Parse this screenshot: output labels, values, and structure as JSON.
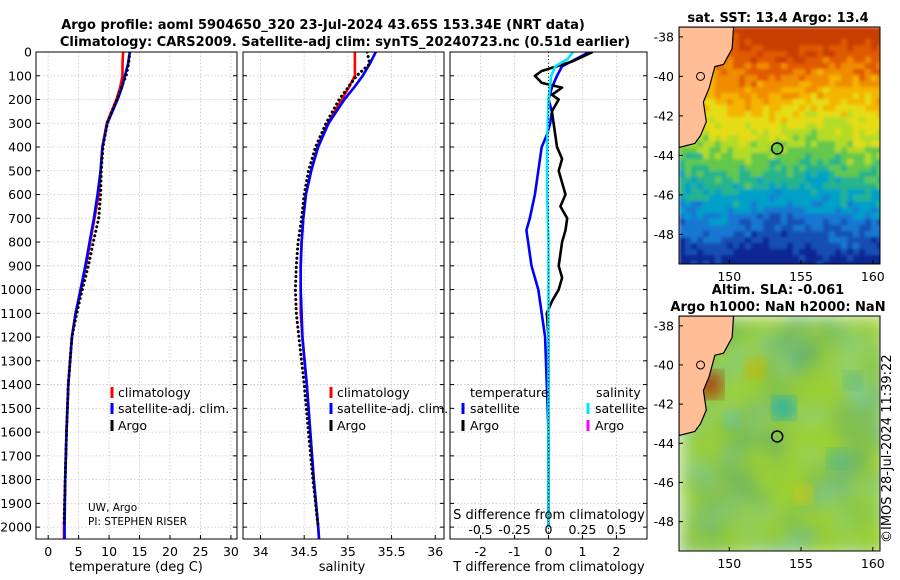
{
  "header": {
    "title_line1": "Argo profile: aoml 5904650_320 23-Jul-2024 43.65S 153.34E (NRT data)",
    "title_line2": "Climatology: CARS2009. Satellite-adj clim: synTS_20240723.nc (0.51d earlier)"
  },
  "footer_credit": "UW, Argo",
  "footer_pi": "PI: STEPHEN RISER",
  "timestamp": "©IMOS 28-Jul-2024 11:39:22",
  "colors": {
    "climatology": "#ff0000",
    "satellite": "#0000ff",
    "argo": "#000000",
    "sat_salinity": "#00e5ff",
    "argo_salinity": "#ff00ff",
    "land": "#ffbe96"
  },
  "chart_data": [
    {
      "type": "line",
      "name": "temperature",
      "xlabel": "temperature (deg C)",
      "ylabel": "",
      "xlim": [
        -2,
        31
      ],
      "ylim": [
        2050,
        0
      ],
      "xticks": [
        0,
        5,
        10,
        15,
        20,
        25,
        30
      ],
      "yticks": [
        0,
        100,
        200,
        300,
        400,
        500,
        600,
        700,
        800,
        900,
        1000,
        1100,
        1200,
        1300,
        1400,
        1500,
        1600,
        1700,
        1800,
        1900,
        2000
      ],
      "grid": true,
      "legend": [
        "climatology",
        "satellite-adj. clim.",
        "Argo"
      ],
      "series": [
        {
          "name": "climatology",
          "color": "#ff0000",
          "style": "solid",
          "depth": [
            0,
            50,
            100,
            150,
            200,
            300,
            400,
            500,
            600,
            700,
            800,
            900,
            1000,
            1100,
            1200,
            1400,
            1600,
            1800,
            2000,
            2050
          ],
          "values": [
            12.3,
            12.2,
            12.2,
            11.8,
            11.2,
            9.6,
            8.9,
            8.6,
            8.3,
            7.6,
            6.9,
            6.2,
            5.4,
            4.5,
            3.9,
            3.3,
            3.0,
            2.8,
            2.6,
            2.6
          ]
        },
        {
          "name": "satellite-adj. clim.",
          "color": "#0000ff",
          "style": "solid",
          "depth": [
            0,
            50,
            100,
            150,
            200,
            300,
            400,
            500,
            600,
            700,
            800,
            900,
            1000,
            1100,
            1200,
            1400,
            1600,
            1800,
            2000,
            2050
          ],
          "values": [
            13.4,
            13.1,
            12.6,
            12.1,
            11.4,
            9.7,
            8.9,
            8.6,
            8.1,
            7.5,
            6.8,
            6.1,
            5.3,
            4.5,
            3.9,
            3.3,
            3.0,
            2.8,
            2.7,
            2.7
          ]
        },
        {
          "name": "Argo",
          "color": "#000000",
          "style": "dotted",
          "depth": [
            0,
            50,
            100,
            150,
            200,
            250,
            300,
            400,
            500,
            600,
            700,
            800,
            900,
            1000,
            1100,
            1200,
            1400,
            1600,
            1800,
            2000
          ],
          "values": [
            13.4,
            13.2,
            12.8,
            12.0,
            11.3,
            10.5,
            9.7,
            9.0,
            8.7,
            8.6,
            8.3,
            7.4,
            6.6,
            5.6,
            4.7,
            3.9,
            3.3,
            3.0,
            2.8,
            2.6
          ]
        }
      ]
    },
    {
      "type": "line",
      "name": "salinity",
      "xlabel": "salinity",
      "ylabel": "",
      "xlim": [
        33.8,
        36.1
      ],
      "ylim": [
        2050,
        0
      ],
      "xticks": [
        34,
        34.5,
        35,
        35.5,
        36
      ],
      "grid": true,
      "legend": [
        "climatology",
        "satellite-adj. clim.",
        "Argo"
      ],
      "series": [
        {
          "name": "climatology",
          "color": "#ff0000",
          "style": "solid",
          "depth": [
            0,
            50,
            100,
            150,
            200,
            300,
            400,
            500,
            600,
            700,
            800,
            900,
            1000,
            1100,
            1200,
            1400,
            1600,
            1800,
            2000,
            2050
          ],
          "values": [
            35.08,
            35.08,
            35.08,
            35.01,
            34.93,
            34.77,
            34.65,
            34.58,
            34.52,
            34.49,
            34.47,
            34.46,
            34.46,
            34.46,
            34.48,
            34.53,
            34.57,
            34.61,
            34.66,
            34.67
          ]
        },
        {
          "name": "satellite-adj. clim.",
          "color": "#0000ff",
          "style": "solid",
          "depth": [
            0,
            50,
            100,
            150,
            200,
            300,
            400,
            500,
            600,
            700,
            800,
            900,
            1000,
            1100,
            1200,
            1400,
            1600,
            1800,
            2000,
            2050
          ],
          "values": [
            35.32,
            35.25,
            35.17,
            35.07,
            34.96,
            34.78,
            34.66,
            34.58,
            34.52,
            34.49,
            34.47,
            34.46,
            34.46,
            34.47,
            34.48,
            34.53,
            34.57,
            34.61,
            34.66,
            34.67
          ]
        },
        {
          "name": "Argo",
          "color": "#000000",
          "style": "dotted",
          "depth": [
            0,
            50,
            100,
            150,
            200,
            300,
            400,
            500,
            600,
            700,
            800,
            900,
            1000,
            1100,
            1200,
            1400,
            1600,
            1800,
            2000
          ],
          "values": [
            35.22,
            35.25,
            35.1,
            35.0,
            34.9,
            34.75,
            34.63,
            34.55,
            34.5,
            34.47,
            34.43,
            34.41,
            34.4,
            34.41,
            34.44,
            34.5,
            34.55,
            34.6,
            34.66
          ]
        }
      ]
    },
    {
      "type": "line",
      "name": "difference",
      "xlabel": "T difference from climatology",
      "xlabel_top": "S difference from climatology",
      "ylabel": "",
      "xlim": [
        -2.9,
        2.9
      ],
      "ylim": [
        2050,
        0
      ],
      "xticks": [
        -2,
        -1,
        0,
        1,
        2
      ],
      "xticks_top": [
        -0.5,
        -0.25,
        0,
        0.25,
        0.5
      ],
      "grid": true,
      "legend_headers": [
        "temperature",
        "salinity"
      ],
      "legend": [
        "satellite",
        "Argo",
        "satellite",
        "Argo"
      ],
      "series": [
        {
          "name": "temperature satellite",
          "color": "#0000ff",
          "style": "solid",
          "depth": [
            0,
            30,
            60,
            100,
            150,
            200,
            250,
            300,
            350,
            400,
            500,
            600,
            700,
            750,
            800,
            900,
            1000,
            1100,
            1200,
            1400,
            1600,
            1800,
            2000
          ],
          "values": [
            1.2,
            0.8,
            0.4,
            0.25,
            0.1,
            0.0,
            0.1,
            0.05,
            -0.05,
            -0.2,
            -0.3,
            -0.4,
            -0.55,
            -0.65,
            -0.6,
            -0.5,
            -0.3,
            -0.2,
            -0.1,
            -0.05,
            0.0,
            0.0,
            0.0
          ]
        },
        {
          "name": "temperature Argo",
          "color": "#000000",
          "style": "solid",
          "depth": [
            0,
            40,
            80,
            100,
            130,
            150,
            180,
            200,
            250,
            300,
            350,
            400,
            450,
            500,
            550,
            600,
            650,
            700,
            750,
            800,
            850,
            900,
            950,
            1000,
            1050,
            1100,
            1200,
            1400,
            1600,
            1800,
            2000
          ],
          "values": [
            1.3,
            0.7,
            -0.2,
            -0.4,
            -0.2,
            0.4,
            0.1,
            0.3,
            0.1,
            0.15,
            0.2,
            0.25,
            0.4,
            0.3,
            0.4,
            0.5,
            0.35,
            0.55,
            0.5,
            0.4,
            0.35,
            0.3,
            0.4,
            0.3,
            0.1,
            -0.05,
            0.0,
            0.0,
            0.0,
            0.0,
            0.0
          ]
        },
        {
          "name": "salinity satellite",
          "color": "#00e5ff",
          "style": "solid",
          "depth": [
            0,
            30,
            60,
            100,
            200,
            400,
            600,
            800,
            1000,
            1200,
            1600,
            2000
          ],
          "values": [
            0.18,
            0.14,
            0.05,
            0.02,
            0.0,
            -0.01,
            -0.01,
            0.0,
            0.0,
            0.0,
            0.0,
            0.0
          ]
        },
        {
          "name": "salinity Argo",
          "color": "#ff00ff",
          "style": "solid",
          "depth": [],
          "values": []
        }
      ]
    },
    {
      "type": "heatmap",
      "name": "sst-map",
      "title": "sat. SST: 13.4 Argo: 13.4",
      "xlim": [
        146.5,
        160.5
      ],
      "ylim": [
        -49.5,
        -37.5
      ],
      "xticks": [
        150,
        155,
        160
      ],
      "yticks": [
        -38,
        -40,
        -42,
        -44,
        -46,
        -48
      ],
      "marker_lon": 153.34,
      "marker_lat": -43.65
    },
    {
      "type": "heatmap",
      "name": "sla-map",
      "title_line1": "Altim. SLA: -0.061",
      "title_line2": "Argo h1000: NaN h2000: NaN",
      "xlim": [
        146.5,
        160.5
      ],
      "ylim": [
        -49.5,
        -37.5
      ],
      "xticks": [
        150,
        155,
        160
      ],
      "yticks": [
        -38,
        -40,
        -42,
        -44,
        -46,
        -48
      ],
      "marker_lon": 153.34,
      "marker_lat": -43.65
    }
  ]
}
